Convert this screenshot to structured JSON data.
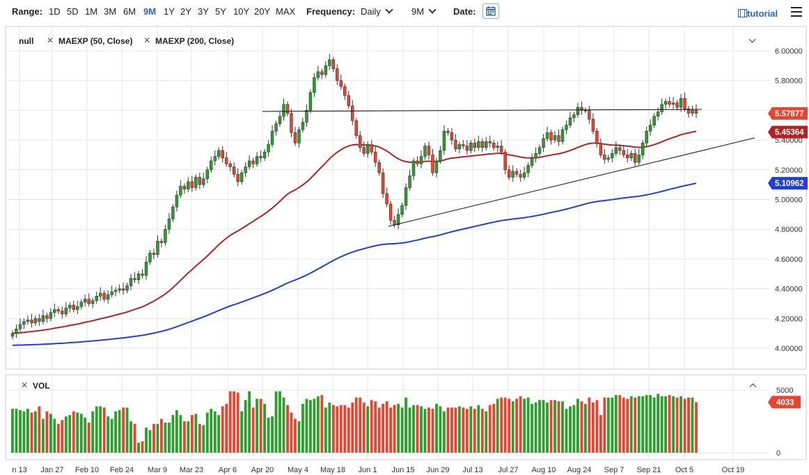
{
  "toolbar": {
    "range_label": "Range:",
    "ranges": [
      "1D",
      "5D",
      "1M",
      "3M",
      "6M",
      "9M",
      "1Y",
      "2Y",
      "3Y",
      "5Y",
      "10Y",
      "20Y",
      "MAX"
    ],
    "active_range": "9M",
    "frequency_label": "Frequency:",
    "frequency_value": "Daily",
    "period_value": "9M",
    "date_label": "Date:",
    "tutorial_label": "tutorial"
  },
  "legend": {
    "main_series": "null",
    "ma50": "MAEXP (50, Close)",
    "ma200": "MAEXP (200, Close)",
    "volume": "VOL"
  },
  "colors": {
    "up": "#2ca02c",
    "down": "#e8442f",
    "ma50": "#b22222",
    "ma200": "#1f3fd6",
    "last_price_badge": "#e8442f",
    "ma50_badge": "#b22222",
    "ma200_badge": "#1f3fd6",
    "accent": "#2a63c6"
  },
  "chart_data": {
    "type": "candlestick",
    "price_axis": {
      "ylim": [
        3.88,
        6.06
      ],
      "ticks": [
        "6.00000",
        "5.80000",
        "5.60000",
        "5.40000",
        "5.20000",
        "5.00000",
        "4.80000",
        "4.60000",
        "4.40000",
        "4.20000",
        "4.00000"
      ],
      "last_price_label": "5.57877",
      "ma50_label": "5.45364",
      "ma200_label": "5.10962"
    },
    "x_axis": {
      "tick_labels": [
        "n 13",
        "Jan 27",
        "Feb 10",
        "Feb 24",
        "Mar 9",
        "Mar 23",
        "Apr 6",
        "Apr 20",
        "May 4",
        "May 18",
        "Jun 1",
        "Jun 15",
        "Jun 29",
        "Jul 13",
        "Jul 27",
        "Aug 10",
        "Aug 24",
        "Sep 7",
        "Sep 21",
        "Oct 5",
        "Oct 19"
      ]
    },
    "volume_axis": {
      "ylim": [
        0,
        5500
      ],
      "ticks": [
        "5000",
        "0"
      ],
      "last_volume_label": "4033"
    },
    "close": [
      4.1,
      4.13,
      4.16,
      4.18,
      4.19,
      4.17,
      4.2,
      4.18,
      4.22,
      4.2,
      4.24,
      4.26,
      4.25,
      4.23,
      4.27,
      4.29,
      4.26,
      4.28,
      4.31,
      4.33,
      4.3,
      4.32,
      4.35,
      4.37,
      4.33,
      4.36,
      4.38,
      4.39,
      4.4,
      4.39,
      4.42,
      4.47,
      4.46,
      4.5,
      4.49,
      4.58,
      4.64,
      4.63,
      4.72,
      4.71,
      4.8,
      4.87,
      4.95,
      5.03,
      5.09,
      5.07,
      5.12,
      5.08,
      5.15,
      5.1,
      5.14,
      5.2,
      5.26,
      5.29,
      5.33,
      5.28,
      5.24,
      5.22,
      5.17,
      5.12,
      5.18,
      5.22,
      5.26,
      5.24,
      5.29,
      5.28,
      5.32,
      5.37,
      5.46,
      5.51,
      5.56,
      5.64,
      5.58,
      5.45,
      5.38,
      5.47,
      5.52,
      5.6,
      5.72,
      5.82,
      5.86,
      5.84,
      5.9,
      5.94,
      5.88,
      5.8,
      5.76,
      5.7,
      5.63,
      5.53,
      5.43,
      5.35,
      5.31,
      5.37,
      5.32,
      5.25,
      5.18,
      5.04,
      4.97,
      4.86,
      4.83,
      4.9,
      4.96,
      5.08,
      5.16,
      5.26,
      5.24,
      5.29,
      5.36,
      5.3,
      5.18,
      5.26,
      5.33,
      5.46,
      5.45,
      5.4,
      5.34,
      5.37,
      5.36,
      5.33,
      5.38,
      5.35,
      5.39,
      5.35,
      5.39,
      5.38,
      5.35,
      5.36,
      5.32,
      5.2,
      5.15,
      5.19,
      5.17,
      5.15,
      5.18,
      5.23,
      5.28,
      5.31,
      5.35,
      5.41,
      5.45,
      5.4,
      5.43,
      5.39,
      5.47,
      5.5,
      5.55,
      5.57,
      5.62,
      5.6,
      5.6,
      5.54,
      5.46,
      5.38,
      5.3,
      5.27,
      5.28,
      5.31,
      5.35,
      5.33,
      5.3,
      5.28,
      5.31,
      5.25,
      5.3,
      5.38,
      5.46,
      5.5,
      5.56,
      5.59,
      5.64,
      5.66,
      5.64,
      5.65,
      5.62,
      5.68,
      5.61,
      5.58,
      5.6,
      5.58
    ],
    "volume": [
      3500,
      3500,
      3400,
      3300,
      3500,
      3200,
      3300,
      3700,
      2700,
      3300,
      3100,
      2700,
      2300,
      2600,
      2900,
      3000,
      3300,
      3200,
      3100,
      2800,
      2400,
      3300,
      3700,
      3700,
      3600,
      2900,
      2700,
      3300,
      3400,
      3600,
      3600,
      2500,
      2300,
      800,
      900,
      2000,
      1800,
      2300,
      2300,
      2700,
      2400,
      2400,
      3000,
      3400,
      3000,
      2500,
      2500,
      3000,
      3100,
      2300,
      2200,
      3200,
      3500,
      3300,
      3000,
      3700,
      3900,
      4900,
      4900,
      4800,
      3300,
      4200,
      4900,
      3600,
      4300,
      4300,
      3900,
      2800,
      2900,
      4900,
      4900,
      4400,
      3800,
      3200,
      2700,
      2500,
      3900,
      4300,
      4200,
      4300,
      4500,
      4600,
      3600,
      4000,
      3800,
      3700,
      3800,
      3800,
      3600,
      4000,
      4400,
      4400,
      4000,
      3700,
      4200,
      4100,
      3600,
      3900,
      4100,
      3600,
      3800,
      3900,
      3600,
      4400,
      3600,
      3800,
      3800,
      3700,
      3500,
      3600,
      3500,
      3900,
      3700,
      3300,
      3600,
      3600,
      3600,
      3700,
      3600,
      3500,
      3700,
      3500,
      3800,
      3500,
      3300,
      3800,
      3900,
      4300,
      4400,
      4400,
      4300,
      4100,
      4300,
      4500,
      4300,
      4400,
      3900,
      4000,
      4200,
      4200,
      4000,
      4200,
      4200,
      4100,
      4100,
      3500,
      3700,
      3800,
      4300,
      4100,
      3900,
      4400,
      4000,
      4200,
      3000,
      4400,
      4400,
      4400,
      4600,
      4600,
      4400,
      4300,
      4500,
      4400,
      4500,
      4500,
      4600,
      4600,
      4400,
      4700,
      4500,
      4500,
      4600,
      4500,
      4400,
      4500,
      4300,
      4400,
      4400,
      4033
    ]
  }
}
